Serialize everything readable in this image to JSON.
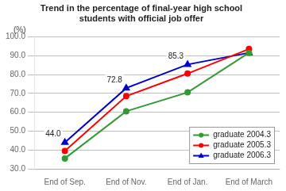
{
  "chart_data": {
    "type": "line",
    "title": "Trend in the percentage of final-year high school\nstudents with official job offer",
    "ylabel": "(%)",
    "categories": [
      "End of Sep.",
      "End of Nov.",
      "End of Jan.",
      "End of March"
    ],
    "series": [
      {
        "name": "graduate 2004.3",
        "color": "#339933",
        "values": [
          35.5,
          60.5,
          70.5,
          91.5
        ],
        "marker": "circle",
        "line_style": "solid"
      },
      {
        "name": "graduate 2005.3",
        "color": "#ff0000",
        "values": [
          39.5,
          68.5,
          80.5,
          93.5
        ],
        "marker": "circle",
        "line_style": "solid"
      },
      {
        "name": "graduate 2006.3",
        "color": "#0000cc",
        "values": [
          44.0,
          72.8,
          85.3,
          91.5
        ],
        "marker": "triangle",
        "line_style": "solid"
      }
    ],
    "ylim": [
      30.0,
      100.0
    ],
    "yticks": [
      {
        "value": 30,
        "label": "30.0"
      },
      {
        "value": 40,
        "label": "40.0"
      },
      {
        "value": 50,
        "label": "50.0"
      },
      {
        "value": 60,
        "label": "60.0"
      },
      {
        "value": 70,
        "label": "70.0"
      },
      {
        "value": 80,
        "label": "80.0"
      },
      {
        "value": 90,
        "label": "90.0"
      },
      {
        "value": 100,
        "label": "100.0"
      }
    ],
    "grid": true,
    "legend": "lower right",
    "annotations": [
      {
        "text": "44.0",
        "x": "End of Sep.",
        "y": 44.0
      },
      {
        "text": "72.8",
        "x": "End of Nov.",
        "y": 72.8
      },
      {
        "text": "85.3",
        "x": "End of Jan.",
        "y": 85.3
      }
    ]
  }
}
